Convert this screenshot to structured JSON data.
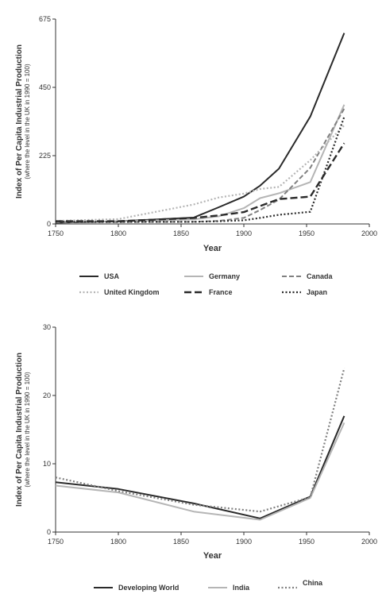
{
  "chart_data": [
    {
      "type": "line",
      "xlabel": "Year",
      "ylabel": "Index of Per Capita Industrial Production",
      "ylabel_sub": "(where the level in the UK in 1990 = 100)",
      "xlim": [
        1750,
        2000
      ],
      "ylim": [
        0,
        675
      ],
      "xticks": [
        "1750",
        "1800",
        "1850",
        "1900",
        "1950",
        "2000"
      ],
      "yticks": [
        "0",
        "225",
        "450",
        "675"
      ],
      "grid": false,
      "legend_position": "bottom",
      "series": [
        {
          "name": "USA",
          "color": "#2a2a2a",
          "dash": "solid",
          "x": [
            1750,
            1800,
            1860,
            1880,
            1900,
            1913,
            1928,
            1953,
            1980
          ],
          "y": [
            4,
            9,
            21,
            55,
            90,
            126,
            182,
            354,
            629
          ]
        },
        {
          "name": "Germany",
          "color": "#b5b5b5",
          "dash": "solid",
          "x": [
            1750,
            1800,
            1860,
            1880,
            1900,
            1913,
            1928,
            1953,
            1980
          ],
          "y": [
            8,
            8,
            15,
            25,
            52,
            85,
            101,
            138,
            393
          ]
        },
        {
          "name": "Canada",
          "color": "#808080",
          "dash": "dash",
          "x": [
            1750,
            1800,
            1860,
            1880,
            1900,
            1913,
            1928,
            1953,
            1980
          ],
          "y": [
            5,
            6,
            7,
            10,
            20,
            46,
            80,
            185,
            380
          ]
        },
        {
          "name": "United Kingdom",
          "color": "#b5b5b5",
          "dash": "dot",
          "x": [
            1750,
            1800,
            1860,
            1880,
            1900,
            1913,
            1928,
            1953,
            1980
          ],
          "y": [
            10,
            16,
            64,
            87,
            100,
            115,
            122,
            210,
            325
          ]
        },
        {
          "name": "France",
          "color": "#2a2a2a",
          "dash": "longdash",
          "x": [
            1750,
            1800,
            1860,
            1880,
            1900,
            1913,
            1928,
            1953,
            1980
          ],
          "y": [
            9,
            9,
            20,
            28,
            39,
            59,
            82,
            90,
            266
          ]
        },
        {
          "name": "Japan",
          "color": "#2a2a2a",
          "dash": "dot",
          "x": [
            1750,
            1800,
            1860,
            1880,
            1900,
            1913,
            1928,
            1953,
            1980
          ],
          "y": [
            7,
            7,
            7,
            9,
            12,
            20,
            30,
            40,
            353
          ]
        }
      ]
    },
    {
      "type": "line",
      "xlabel": "Year",
      "ylabel": "Index of Per Capita Industrial Production",
      "ylabel_sub": "(where the level in the UK in 1990 = 100)",
      "xlim": [
        1750,
        2000
      ],
      "ylim": [
        0,
        30
      ],
      "xticks": [
        "1750",
        "1800",
        "1850",
        "1900",
        "1950",
        "2000"
      ],
      "yticks": [
        "0",
        "10",
        "20",
        "30"
      ],
      "grid": false,
      "legend_position": "bottom",
      "series": [
        {
          "name": "Developing World",
          "color": "#2a2a2a",
          "dash": "solid",
          "x": [
            1750,
            1800,
            1860,
            1913,
            1953,
            1980
          ],
          "y": [
            7.3,
            6.3,
            4.2,
            2.0,
            5.2,
            17.0
          ]
        },
        {
          "name": "India",
          "color": "#b5b5b5",
          "dash": "solid",
          "x": [
            1750,
            1800,
            1860,
            1913,
            1953,
            1980
          ],
          "y": [
            6.8,
            5.8,
            3.0,
            1.8,
            5.0,
            16.0
          ]
        },
        {
          "name": "China",
          "color": "#808080",
          "dash": "dot",
          "x": [
            1750,
            1800,
            1860,
            1913,
            1953,
            1980
          ],
          "y": [
            8.0,
            6.0,
            4.0,
            3.0,
            5.1,
            24.0
          ]
        }
      ]
    }
  ]
}
